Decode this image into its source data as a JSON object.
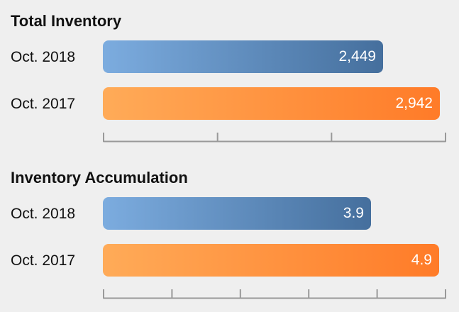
{
  "chart_data": [
    {
      "type": "bar",
      "orientation": "horizontal",
      "title": "Total Inventory",
      "categories": [
        "Oct. 2018",
        "Oct. 2017"
      ],
      "values": [
        2449,
        2942
      ],
      "value_labels": [
        "2,449",
        "2,942"
      ],
      "xlim": [
        0,
        3000
      ],
      "axis_ticks": 4,
      "colors": [
        "#4f7fb3",
        "#ff8c38"
      ]
    },
    {
      "type": "bar",
      "orientation": "horizontal",
      "title": "Inventory Accumulation",
      "categories": [
        "Oct. 2018",
        "Oct. 2017"
      ],
      "values": [
        3.9,
        4.9
      ],
      "value_labels": [
        "3.9",
        "4.9"
      ],
      "xlim": [
        0,
        5
      ],
      "axis_ticks": 6,
      "colors": [
        "#4f7fb3",
        "#ff8c38"
      ]
    }
  ]
}
